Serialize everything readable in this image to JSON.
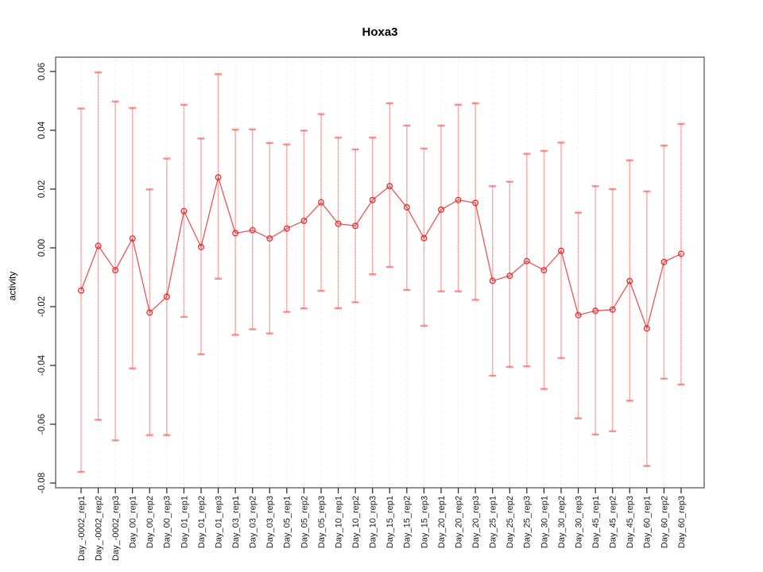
{
  "title": "Hoxa3",
  "ylabel": "activity",
  "colors": {
    "background": "#ffffff",
    "box_border": "#7a7a7a",
    "grid": "#dcdcdc",
    "tick": "#222222",
    "tick_label": "#1a1a1a",
    "error_bar": "rgba(255,60,60,0.40)",
    "error_cap": "rgba(255,60,60,0.58)",
    "series_line": "rgba(232,55,55,0.85)",
    "point_stroke": "rgba(225,35,35,0.9)"
  },
  "chart_data": {
    "type": "line",
    "subtype": "points-with-error-bars",
    "title": "Hoxa3",
    "xlabel": "",
    "ylabel": "activity",
    "ylim": [
      -0.085,
      0.065
    ],
    "yticks": [
      "0.06",
      "0.04",
      "0.02",
      "0.00",
      "-0.02",
      "-0.04",
      "-0.06",
      "-0.08"
    ],
    "ytick_values": [
      0.06,
      0.04,
      0.02,
      0.0,
      -0.02,
      -0.04,
      -0.06,
      -0.08
    ],
    "grid": "vertical dotted line per category; horizontal dotted line at 0 only",
    "legend": "none",
    "categories": [
      "Day_-0002_rep1",
      "Day_-0002_rep2",
      "Day_-0002_rep3",
      "Day_00_rep1",
      "Day_00_rep2",
      "Day_00_rep3",
      "Day_01_rep1",
      "Day_01_rep2",
      "Day_01_rep3",
      "Day_03_rep1",
      "Day_03_rep2",
      "Day_03_rep3",
      "Day_05_rep1",
      "Day_05_rep2",
      "Day_05_rep3",
      "Day_10_rep1",
      "Day_10_rep2",
      "Day_10_rep3",
      "Day_15_rep1",
      "Day_15_rep2",
      "Day_15_rep3",
      "Day_20_rep1",
      "Day_20_rep2",
      "Day_20_rep3",
      "Day_25_rep1",
      "Day_25_rep2",
      "Day_25_rep3",
      "Day_30_rep1",
      "Day_30_rep2",
      "Day_30_rep3",
      "Day_45_rep1",
      "Day_45_rep2",
      "Day_45_rep3",
      "Day_60_rep1",
      "Day_60_rep2",
      "Day_60_rep3"
    ],
    "series": [
      {
        "name": "activity",
        "values": [
          -0.0145,
          0.0007,
          -0.0076,
          0.0032,
          -0.022,
          -0.0166,
          0.0125,
          0.0003,
          0.024,
          0.005,
          0.006,
          0.0032,
          0.0066,
          0.0092,
          0.0155,
          0.0082,
          0.0075,
          0.0163,
          0.021,
          0.0138,
          0.0033,
          0.013,
          0.0163,
          0.0153,
          -0.0112,
          -0.0095,
          -0.0045,
          -0.0076,
          -0.001,
          -0.0229,
          -0.0214,
          -0.021,
          -0.0113,
          -0.0274,
          -0.0048,
          -0.002
        ],
        "error_low": [
          -0.0762,
          -0.0585,
          -0.0655,
          -0.041,
          -0.0637,
          -0.0637,
          -0.0235,
          -0.0362,
          -0.0105,
          -0.0296,
          -0.0277,
          -0.0291,
          -0.0218,
          -0.0206,
          -0.0146,
          -0.0205,
          -0.0185,
          -0.009,
          -0.0065,
          -0.0143,
          -0.0265,
          -0.0148,
          -0.0148,
          -0.0177,
          -0.0435,
          -0.0405,
          -0.0403,
          -0.048,
          -0.0375,
          -0.058,
          -0.0635,
          -0.0624,
          -0.052,
          -0.0742,
          -0.0445,
          -0.0465
        ],
        "error_high": [
          0.0474,
          0.0597,
          0.0498,
          0.0476,
          0.0199,
          0.0304,
          0.0487,
          0.0372,
          0.0591,
          0.0402,
          0.0403,
          0.0357,
          0.0352,
          0.0399,
          0.0455,
          0.0375,
          0.0335,
          0.0375,
          0.0492,
          0.0416,
          0.0338,
          0.0416,
          0.0487,
          0.0492,
          0.021,
          0.0225,
          0.032,
          0.033,
          0.0358,
          0.012,
          0.021,
          0.02,
          0.0298,
          0.0192,
          0.0348,
          0.0422
        ]
      }
    ]
  }
}
